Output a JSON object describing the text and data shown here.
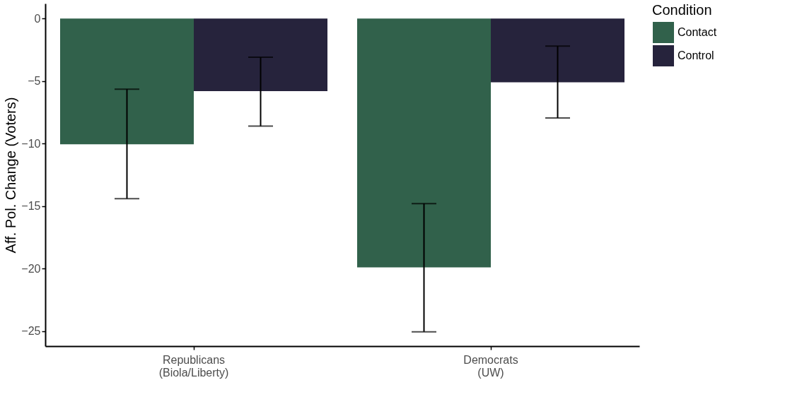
{
  "chart_data": {
    "type": "bar",
    "ylabel": "Aff. Pol. Change (Voters)",
    "legend_title": "Condition",
    "legend": "right",
    "categories": [
      "Republicans\n(Biola/Liberty)",
      "Democrats\n(UW)"
    ],
    "series": [
      {
        "name": "Contact",
        "color": "#31614b",
        "values": [
          -10.05,
          -19.9
        ],
        "errors": [
          [
            -14.4,
            -5.65
          ],
          [
            -25.05,
            -14.8
          ]
        ]
      },
      {
        "name": "Control",
        "color": "#26233c",
        "values": [
          -5.8,
          -5.1
        ],
        "errors": [
          [
            -8.6,
            -3.1
          ],
          [
            -7.95,
            -2.2
          ]
        ]
      }
    ],
    "ylim": [
      -26.2,
      1.2
    ],
    "yticks": [
      0,
      -5,
      -10,
      -15,
      -20,
      -25
    ],
    "grid": false
  }
}
